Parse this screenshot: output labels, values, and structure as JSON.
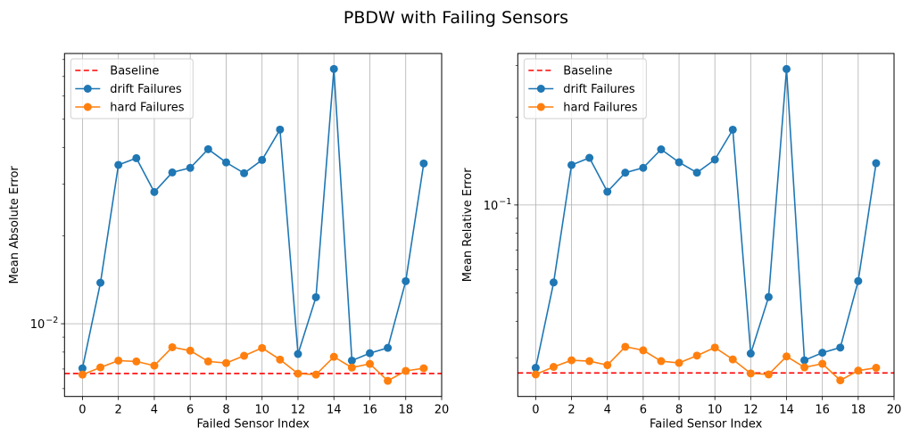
{
  "chart_data": [
    {
      "type": "line",
      "title": "PBDW with Failing Sensors",
      "xlabel": "Failed Sensor Index",
      "ylabel": "Mean Absolute Error",
      "xlim": [
        -1,
        20
      ],
      "ylim": [
        0.00564,
        0.0839
      ],
      "yscale": "log",
      "xticks": [
        0,
        2,
        4,
        6,
        8,
        10,
        12,
        14,
        16,
        18,
        20
      ],
      "yticks_major": [
        {
          "value": 0.01,
          "base": "10",
          "exp": "−2"
        }
      ],
      "yticks_minor": [
        0.006,
        0.007,
        0.008,
        0.009,
        0.02,
        0.03,
        0.04,
        0.05,
        0.06,
        0.07,
        0.08
      ],
      "grid": true,
      "legend": "upper-left",
      "x": [
        0,
        1,
        2,
        3,
        4,
        5,
        6,
        7,
        8,
        9,
        10,
        11,
        12,
        13,
        14,
        15,
        16,
        17,
        18,
        19
      ],
      "baseline": {
        "name": "Baseline",
        "value": 0.00676,
        "color": "#ff0000",
        "style": "dashed"
      },
      "series": [
        {
          "name": "drift Failures",
          "color": "#1f77b4",
          "values": [
            0.00704,
            0.01381,
            0.0349,
            0.0368,
            0.0282,
            0.0329,
            0.0341,
            0.0395,
            0.0356,
            0.0327,
            0.0363,
            0.0461,
            0.00788,
            0.01232,
            0.0743,
            0.00748,
            0.00793,
            0.00827,
            0.01398,
            0.0353
          ]
        },
        {
          "name": "hard Failures",
          "color": "#ff7f0e",
          "values": [
            0.0067,
            0.00709,
            0.00748,
            0.00743,
            0.00719,
            0.00831,
            0.00809,
            0.00743,
            0.00734,
            0.00777,
            0.00826,
            0.00754,
            0.00675,
            0.0067,
            0.00771,
            0.00708,
            0.00729,
            0.00638,
            0.0069,
            0.00704
          ]
        }
      ]
    },
    {
      "type": "line",
      "xlabel": "Failed Sensor Index",
      "ylabel": "Mean Relative Error",
      "xlim": [
        -1,
        20
      ],
      "ylim": [
        0.0221,
        0.33
      ],
      "yscale": "log",
      "xticks": [
        0,
        2,
        4,
        6,
        8,
        10,
        12,
        14,
        16,
        18,
        20
      ],
      "yticks_major": [
        {
          "value": 0.1,
          "base": "10",
          "exp": "−1"
        }
      ],
      "yticks_minor": [
        0.03,
        0.04,
        0.05,
        0.06,
        0.07,
        0.08,
        0.09,
        0.2,
        0.3
      ],
      "grid": true,
      "legend": "upper-left",
      "x": [
        0,
        1,
        2,
        3,
        4,
        5,
        6,
        7,
        8,
        9,
        10,
        11,
        12,
        13,
        14,
        15,
        16,
        17,
        18,
        19
      ],
      "baseline": {
        "name": "Baseline",
        "value": 0.0266,
        "color": "#ff0000",
        "style": "dashed"
      },
      "series": [
        {
          "name": "drift Failures",
          "color": "#1f77b4",
          "values": [
            0.0277,
            0.0543,
            0.137,
            0.145,
            0.111,
            0.129,
            0.134,
            0.155,
            0.14,
            0.129,
            0.143,
            0.181,
            0.031,
            0.0484,
            0.292,
            0.0294,
            0.0312,
            0.0325,
            0.0549,
            0.139
          ]
        },
        {
          "name": "hard Failures",
          "color": "#ff7f0e",
          "values": [
            0.0263,
            0.0279,
            0.0294,
            0.0292,
            0.0283,
            0.0327,
            0.0318,
            0.0292,
            0.0288,
            0.0305,
            0.0325,
            0.0296,
            0.0265,
            0.0263,
            0.0303,
            0.0278,
            0.0286,
            0.0251,
            0.0271,
            0.0277
          ]
        }
      ]
    }
  ]
}
